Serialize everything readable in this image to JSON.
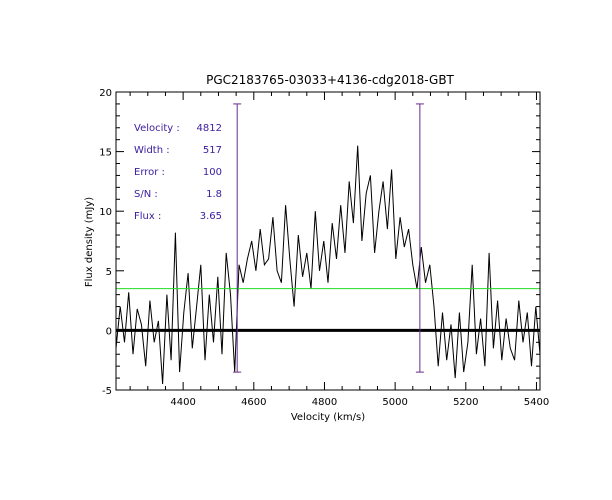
{
  "chart_data": {
    "type": "line",
    "title": "PGC2183765-03033+4136-cdg2018-GBT",
    "xlabel": "Velocity (km/s)",
    "ylabel": "Flux density (mJy)",
    "xlim": [
      4210,
      5410
    ],
    "ylim": [
      -5,
      20
    ],
    "x_ticks": [
      4400,
      4600,
      4800,
      5000,
      5200,
      5400
    ],
    "y_ticks": [
      -5,
      0,
      5,
      10,
      15,
      20
    ],
    "info": [
      {
        "label": "Velocity :",
        "value": "4812"
      },
      {
        "label": "Width :",
        "value": "517"
      },
      {
        "label": "Error :",
        "value": "100"
      },
      {
        "label": "S/N :",
        "value": "1.8"
      },
      {
        "label": "Flux :",
        "value": "3.65"
      }
    ],
    "baseline": 0,
    "rms_level": 3.5,
    "markers": [
      {
        "x": 4553,
        "y_range": [
          -3.5,
          19
        ]
      },
      {
        "x": 5070,
        "y_range": [
          -3.5,
          19
        ]
      }
    ],
    "series": [
      {
        "x": [
          4210,
          4222,
          4234,
          4246,
          4258,
          4270,
          4282,
          4294,
          4306,
          4318,
          4330,
          4342,
          4354,
          4366,
          4378,
          4390,
          4402,
          4414,
          4426,
          4438,
          4450,
          4462,
          4474,
          4486,
          4498,
          4510,
          4522,
          4534,
          4546,
          4558,
          4570,
          4582,
          4594,
          4606,
          4618,
          4630,
          4642,
          4654,
          4666,
          4678,
          4690,
          4702,
          4714,
          4726,
          4738,
          4750,
          4762,
          4774,
          4786,
          4798,
          4810,
          4822,
          4834,
          4846,
          4858,
          4870,
          4882,
          4894,
          4906,
          4918,
          4930,
          4942,
          4954,
          4966,
          4978,
          4990,
          5002,
          5014,
          5026,
          5038,
          5050,
          5062,
          5074,
          5086,
          5098,
          5110,
          5122,
          5134,
          5146,
          5158,
          5170,
          5182,
          5194,
          5206,
          5218,
          5230,
          5242,
          5254,
          5266,
          5278,
          5290,
          5302,
          5314,
          5326,
          5338,
          5350,
          5362,
          5374,
          5386,
          5398,
          5410
        ],
        "y": [
          -1.5,
          2.0,
          -1.0,
          3.2,
          -2.0,
          1.8,
          0.5,
          -3.0,
          2.5,
          -1.0,
          0.8,
          -4.5,
          3.0,
          -2.5,
          8.2,
          -3.5,
          1.5,
          4.8,
          -1.5,
          2.0,
          5.5,
          -2.5,
          3.0,
          -1.0,
          4.5,
          -2.0,
          6.5,
          3.0,
          -3.5,
          5.5,
          4.0,
          6.0,
          7.5,
          5.0,
          8.5,
          5.5,
          6.0,
          9.5,
          5.0,
          4.0,
          10.5,
          6.0,
          2.0,
          8.0,
          4.5,
          6.5,
          3.5,
          10.0,
          5.0,
          7.5,
          4.0,
          9.0,
          6.0,
          10.5,
          6.5,
          12.5,
          9.0,
          15.5,
          7.5,
          11.5,
          13.0,
          6.5,
          10.0,
          12.5,
          8.5,
          13.5,
          6.0,
          9.5,
          7.0,
          8.5,
          5.5,
          3.5,
          7.0,
          4.0,
          5.5,
          2.0,
          -3.0,
          1.5,
          -2.5,
          0.5,
          -4.0,
          1.5,
          -3.5,
          -1.0,
          5.5,
          -2.0,
          1.0,
          -3.0,
          6.5,
          -1.5,
          2.5,
          -2.5,
          1.0,
          -1.5,
          -2.5,
          2.5,
          -1.0,
          1.5,
          -3.0,
          2.0,
          -2.0
        ]
      }
    ],
    "colors": {
      "spectrum": "#000000",
      "baseline": "#000000",
      "rms_line": "#22dd22",
      "markers": "#6a2a8a",
      "info_text": "#3a1c9e"
    }
  }
}
